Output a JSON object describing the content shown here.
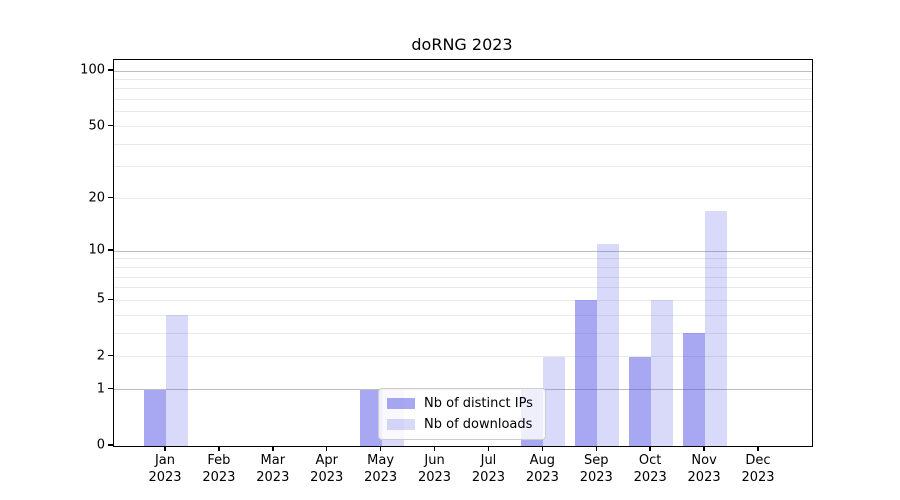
{
  "figure": {
    "background_color": "#ffffff",
    "text_color": "#000000"
  },
  "chart_data": {
    "type": "bar",
    "title": "doRNG 2023",
    "xlabel": "",
    "ylabel": "",
    "months": [
      "Jan",
      "Feb",
      "Mar",
      "Apr",
      "May",
      "Jun",
      "Jul",
      "Aug",
      "Sep",
      "Oct",
      "Nov",
      "Dec"
    ],
    "year": "2023",
    "series": [
      {
        "name": "Nb of distinct IPs",
        "color": "rgba(81,81,229,0.5)",
        "values": [
          1,
          0,
          0,
          0,
          1,
          0,
          0,
          1,
          5,
          2,
          3,
          0
        ]
      },
      {
        "name": "Nb of downloads",
        "color": "rgba(81,81,229,0.22)",
        "values": [
          4,
          0,
          0,
          0,
          1,
          0,
          0,
          2,
          11,
          5,
          17,
          0
        ]
      }
    ],
    "y_scale": "log1p",
    "ylim": [
      0,
      115
    ],
    "y_ticks_labeled": [
      "0",
      "1",
      "2",
      "5",
      "10",
      "20",
      "50",
      "100"
    ],
    "y_tick_values": [
      0,
      1,
      2,
      5,
      10,
      20,
      50,
      100
    ],
    "y_gridlines_major": [
      1,
      10,
      100
    ],
    "y_gridlines_minor": [
      2,
      3,
      4,
      5,
      6,
      7,
      8,
      9,
      20,
      30,
      40,
      50,
      60,
      70,
      80,
      90
    ],
    "grid": "on",
    "legend_position": "lower-center",
    "colors": {
      "grid_major": "#bdbdbd",
      "grid_minor": "#e9e9e9",
      "axis": "#000000",
      "legend_border": "#cccccc"
    }
  }
}
